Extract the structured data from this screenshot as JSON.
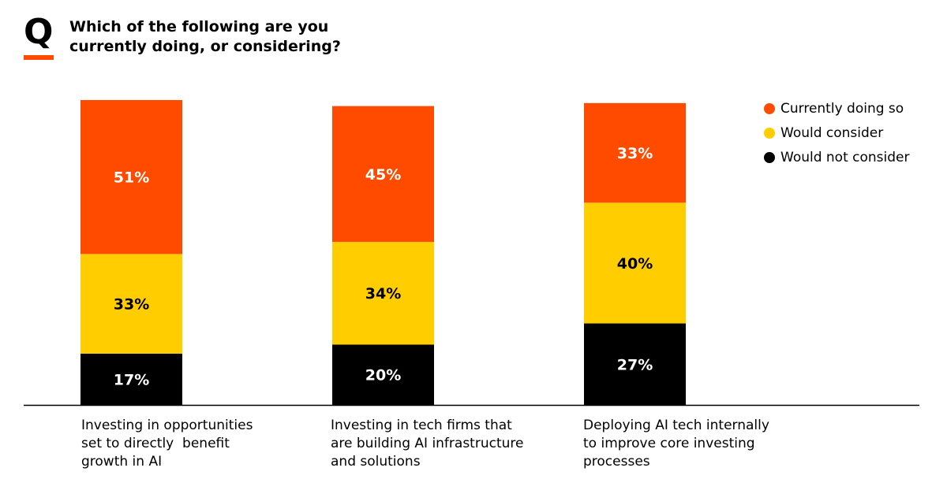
{
  "badge": {
    "letter": "Q"
  },
  "title": "Which of the following are you currently doing, or considering?",
  "colors": {
    "accent": "#ff4b00",
    "currently": "#ff4b00",
    "consider": "#ffcd00",
    "not": "#000000",
    "axis": "#000000"
  },
  "legend": {
    "items": [
      {
        "label": "Currently doing so"
      },
      {
        "label": "Would consider"
      },
      {
        "label": "Would not consider"
      }
    ]
  },
  "chart_data": {
    "type": "bar",
    "stacked": true,
    "title": "Which of the following are you currently doing, or considering?",
    "xlabel": "",
    "ylabel": "",
    "ylim": [
      0,
      101
    ],
    "grid": false,
    "legend_position": "top-right",
    "categories": [
      "Investing in opportunities set to directly  benefit growth in AI",
      "Investing in tech firms that are building AI infrastructure and solutions",
      "Deploying AI tech internally to improve core investing processes"
    ],
    "category_lines": [
      [
        "Investing in opportunities",
        "set to directly  benefit",
        "growth in AI"
      ],
      [
        "Investing in tech firms that",
        "are building AI infrastructure",
        "and solutions"
      ],
      [
        "Deploying AI tech internally",
        "to improve core investing",
        "processes"
      ]
    ],
    "series": [
      {
        "name": "Would not consider",
        "values": [
          17,
          20,
          27
        ],
        "labels": [
          "17%",
          "20%",
          "27%"
        ]
      },
      {
        "name": "Would consider",
        "values": [
          33,
          34,
          40
        ],
        "labels": [
          "33%",
          "34%",
          "40%"
        ]
      },
      {
        "name": "Currently doing so",
        "values": [
          51,
          45,
          33
        ],
        "labels": [
          "51%",
          "45%",
          "33%"
        ]
      }
    ]
  }
}
